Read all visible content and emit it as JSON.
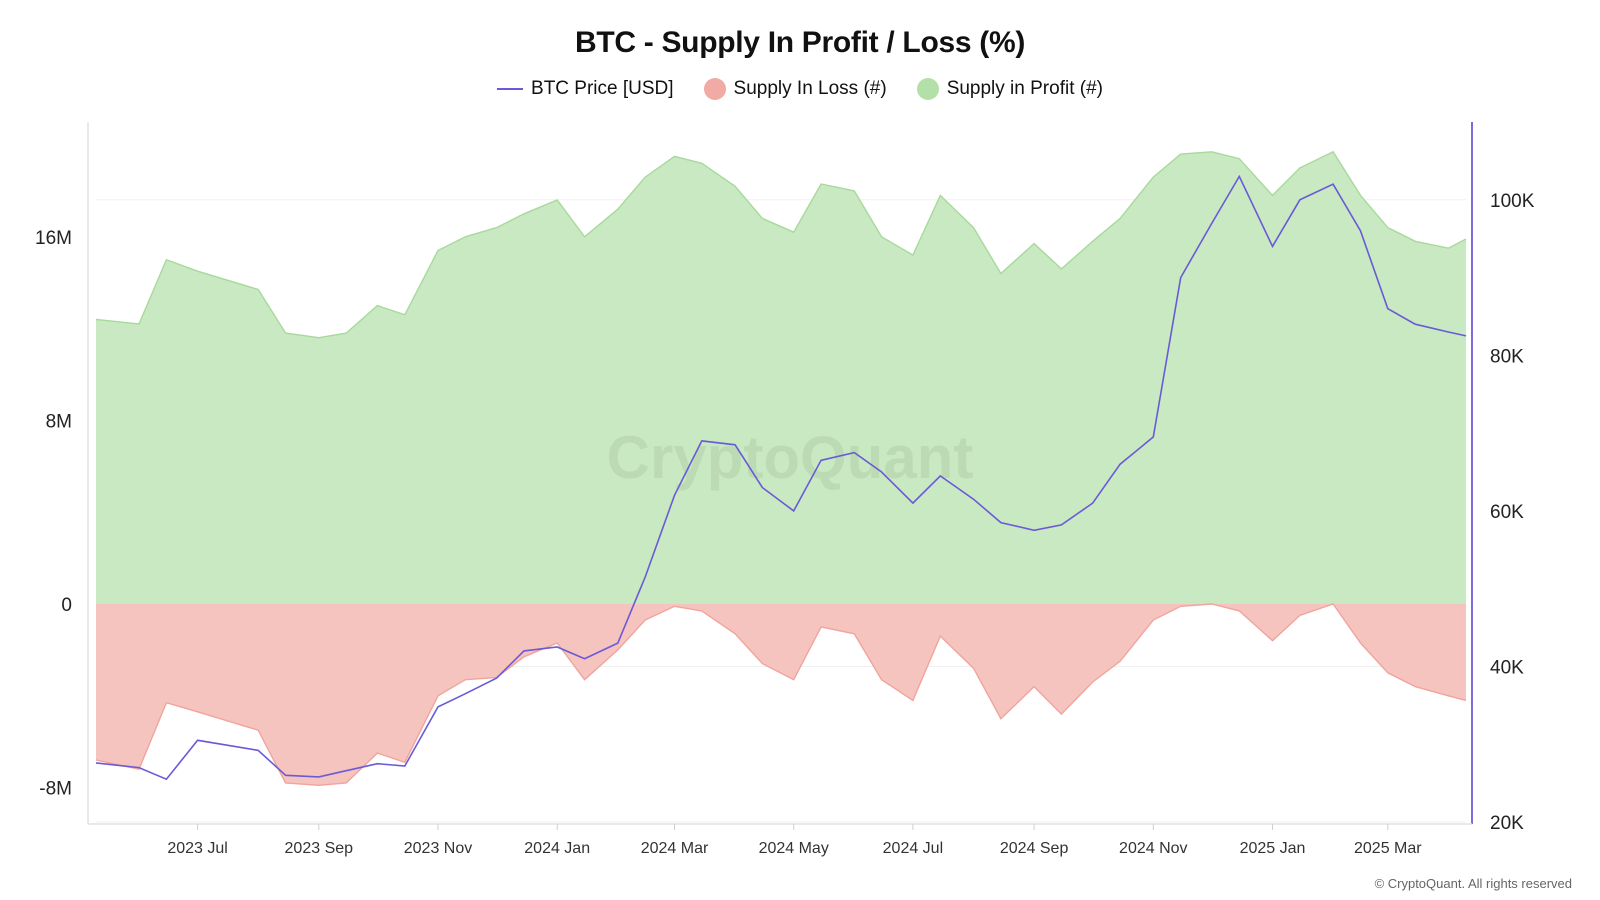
{
  "title": "BTC - Supply In Profit / Loss (%)",
  "watermark": "CryptoQuant",
  "copyright": "© CryptoQuant. All rights reserved",
  "legend": [
    {
      "label": "BTC Price [USD]",
      "kind": "line",
      "color": "#6a5ad8"
    },
    {
      "label": "Supply In Loss (#)",
      "kind": "dot",
      "color": "#f2aaa4"
    },
    {
      "label": "Supply in Profit (#)",
      "kind": "dot",
      "color": "#b3e0a8"
    }
  ],
  "chart_data": {
    "type": "area",
    "title": "BTC - Supply In Profit / Loss (%)",
    "x_tick_labels": [
      "2023 Jul",
      "2023 Sep",
      "2023 Nov",
      "2024 Jan",
      "2024 Mar",
      "2024 May",
      "2024 Jul",
      "2024 Sep",
      "2024 Nov",
      "2025 Jan",
      "2025 Mar"
    ],
    "x_range": [
      "2023-05-10",
      "2025-04-10"
    ],
    "y_left": {
      "ticks": [
        -8000000,
        0,
        8000000,
        16000000
      ],
      "tick_labels": [
        "-8M",
        "0",
        "8M",
        "16M"
      ],
      "range": [
        -9500000,
        21000000
      ]
    },
    "y_right": {
      "ticks": [
        20000,
        40000,
        60000,
        80000,
        100000
      ],
      "tick_labels": [
        "20K",
        "40K",
        "60K",
        "80K",
        "100K"
      ],
      "range": [
        20000,
        110000
      ]
    },
    "grid": true,
    "legend_position": "top-center",
    "colors": {
      "profit_fill": "#c8e9c1",
      "profit_line": "#a8d99c",
      "loss_fill": "#f6c4bf",
      "loss_line": "#f0a49c",
      "price": "#6a5ad8",
      "right_axis": "#7b6be0"
    },
    "series": [
      {
        "name": "Supply in Profit (#)",
        "axis": "left",
        "x": [
          "2023-05-10",
          "2023-06-01",
          "2023-06-15",
          "2023-07-01",
          "2023-08-01",
          "2023-08-15",
          "2023-09-01",
          "2023-09-15",
          "2023-10-01",
          "2023-10-15",
          "2023-11-01",
          "2023-11-15",
          "2023-12-01",
          "2023-12-15",
          "2024-01-01",
          "2024-01-15",
          "2024-02-01",
          "2024-02-15",
          "2024-03-01",
          "2024-03-15",
          "2024-04-01",
          "2024-04-15",
          "2024-05-01",
          "2024-05-15",
          "2024-06-01",
          "2024-06-15",
          "2024-07-01",
          "2024-07-15",
          "2024-08-01",
          "2024-08-15",
          "2024-09-01",
          "2024-09-15",
          "2024-10-01",
          "2024-10-15",
          "2024-11-01",
          "2024-11-15",
          "2024-12-01",
          "2024-12-15",
          "2025-01-01",
          "2025-01-15",
          "2025-02-01",
          "2025-02-15",
          "2025-03-01",
          "2025-03-15",
          "2025-04-01",
          "2025-04-10"
        ],
        "values": [
          12.4,
          12.2,
          15.0,
          14.5,
          13.7,
          11.8,
          11.6,
          11.8,
          13.0,
          12.6,
          15.4,
          16.0,
          16.4,
          17.0,
          17.6,
          16.0,
          17.2,
          18.6,
          19.5,
          19.2,
          18.2,
          16.8,
          16.2,
          18.3,
          18.0,
          16.0,
          15.2,
          17.8,
          16.4,
          14.4,
          15.7,
          14.6,
          15.8,
          16.8,
          18.6,
          19.6,
          19.7,
          19.4,
          17.8,
          19.0,
          19.7,
          17.8,
          16.4,
          15.8,
          15.5,
          15.9
        ]
      },
      {
        "name": "Supply In Loss (#)",
        "axis": "left",
        "x": [
          "2023-05-10",
          "2023-06-01",
          "2023-06-15",
          "2023-07-01",
          "2023-08-01",
          "2023-08-15",
          "2023-09-01",
          "2023-09-15",
          "2023-10-01",
          "2023-10-15",
          "2023-11-01",
          "2023-11-15",
          "2023-12-01",
          "2023-12-15",
          "2024-01-01",
          "2024-01-15",
          "2024-02-01",
          "2024-02-15",
          "2024-03-01",
          "2024-03-15",
          "2024-04-01",
          "2024-04-15",
          "2024-05-01",
          "2024-05-15",
          "2024-06-01",
          "2024-06-15",
          "2024-07-01",
          "2024-07-15",
          "2024-08-01",
          "2024-08-15",
          "2024-09-01",
          "2024-09-15",
          "2024-10-01",
          "2024-10-15",
          "2024-11-01",
          "2024-11-15",
          "2024-12-01",
          "2024-12-15",
          "2025-01-01",
          "2025-01-15",
          "2025-02-01",
          "2025-02-15",
          "2025-03-01",
          "2025-03-15",
          "2025-04-01",
          "2025-04-10"
        ],
        "values": [
          -6.8,
          -7.2,
          -4.3,
          -4.7,
          -5.5,
          -7.8,
          -7.9,
          -7.8,
          -6.5,
          -6.9,
          -4.0,
          -3.3,
          -3.2,
          -2.3,
          -1.7,
          -3.3,
          -2.0,
          -0.7,
          -0.1,
          -0.3,
          -1.3,
          -2.6,
          -3.3,
          -1.0,
          -1.3,
          -3.3,
          -4.2,
          -1.4,
          -2.8,
          -5.0,
          -3.6,
          -4.8,
          -3.4,
          -2.5,
          -0.7,
          -0.1,
          0.0,
          -0.3,
          -1.6,
          -0.5,
          0.0,
          -1.7,
          -3.0,
          -3.6,
          -4.0,
          -4.2
        ]
      },
      {
        "name": "BTC Price [USD]",
        "axis": "right",
        "x": [
          "2023-05-10",
          "2023-06-01",
          "2023-06-15",
          "2023-07-01",
          "2023-08-01",
          "2023-08-15",
          "2023-09-01",
          "2023-09-15",
          "2023-10-01",
          "2023-10-15",
          "2023-11-01",
          "2023-11-15",
          "2023-12-01",
          "2023-12-15",
          "2024-01-01",
          "2024-01-15",
          "2024-02-01",
          "2024-02-15",
          "2024-03-01",
          "2024-03-15",
          "2024-04-01",
          "2024-04-15",
          "2024-05-01",
          "2024-05-15",
          "2024-06-01",
          "2024-06-15",
          "2024-07-01",
          "2024-07-15",
          "2024-08-01",
          "2024-08-15",
          "2024-09-01",
          "2024-09-15",
          "2024-10-01",
          "2024-10-15",
          "2024-11-01",
          "2024-11-15",
          "2024-12-01",
          "2024-12-15",
          "2025-01-01",
          "2025-01-15",
          "2025-02-01",
          "2025-02-15",
          "2025-03-01",
          "2025-03-15",
          "2025-04-01",
          "2025-04-10"
        ],
        "values": [
          27600,
          27000,
          25500,
          30500,
          29200,
          26000,
          25800,
          26600,
          27500,
          27200,
          34800,
          36500,
          38500,
          42000,
          42500,
          41000,
          43000,
          51500,
          62000,
          69000,
          68500,
          63000,
          60000,
          66500,
          67500,
          65000,
          61000,
          64500,
          61500,
          58500,
          57500,
          58200,
          61000,
          66000,
          69500,
          90000,
          97000,
          103000,
          94000,
          100000,
          102000,
          96000,
          86000,
          84000,
          83000,
          82500
        ]
      }
    ]
  }
}
